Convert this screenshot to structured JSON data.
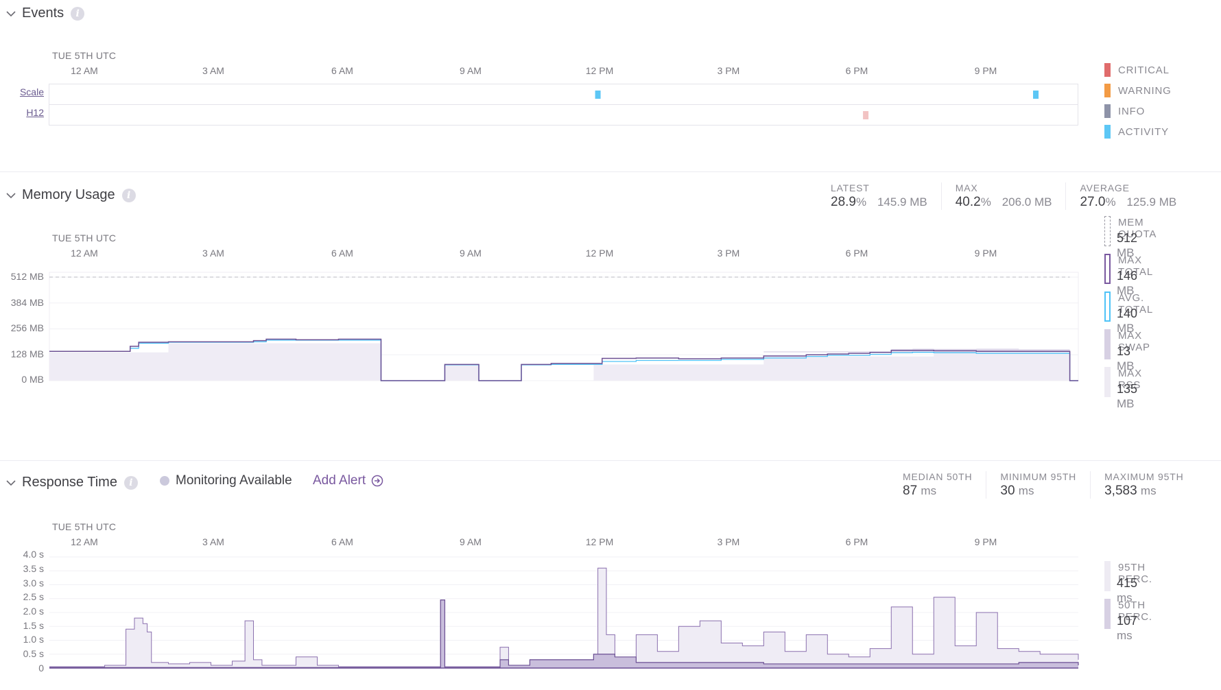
{
  "timezone_label": "TUE 5TH UTC",
  "time_ticks": [
    "12 AM",
    "3 AM",
    "6 AM",
    "9 AM",
    "12 PM",
    "3 PM",
    "6 PM",
    "9 PM"
  ],
  "events": {
    "title": "Events",
    "rows": [
      "Scale",
      "H12"
    ],
    "legend": [
      {
        "label": "CRITICAL",
        "color": "#e06c6c"
      },
      {
        "label": "WARNING",
        "color": "#f39b45"
      },
      {
        "label": "INFO",
        "color": "#8e93a8"
      },
      {
        "label": "ACTIVITY",
        "color": "#5dc7f5"
      }
    ],
    "marks": [
      {
        "row": "Scale",
        "time_h": 12.1,
        "kind": "ACTIVITY"
      },
      {
        "row": "Scale",
        "time_h": 22.4,
        "kind": "ACTIVITY"
      },
      {
        "row": "H12",
        "time_h": 18.4,
        "kind": "CRITICAL"
      }
    ]
  },
  "memory": {
    "title": "Memory Usage",
    "stats": [
      {
        "label": "LATEST",
        "pct": "28.9",
        "pct_unit": "%",
        "mb": "145.9",
        "mb_unit": "MB"
      },
      {
        "label": "MAX",
        "pct": "40.2",
        "pct_unit": "%",
        "mb": "206.0",
        "mb_unit": "MB"
      },
      {
        "label": "AVERAGE",
        "pct": "27.0",
        "pct_unit": "%",
        "mb": "125.9",
        "mb_unit": "MB"
      }
    ],
    "y_labels": [
      "512 MB",
      "384 MB",
      "256 MB",
      "128 MB",
      "0 MB"
    ],
    "legend": [
      {
        "label": "MEM QUOTA",
        "value": "512",
        "unit": "MB",
        "style": "dashed"
      },
      {
        "label": "MAX TOTAL",
        "value": "146",
        "unit": "MB",
        "style": "outline-purple"
      },
      {
        "label": "AVG. TOTAL",
        "value": "140",
        "unit": "MB",
        "style": "outline-blue"
      },
      {
        "label": "MAX SWAP",
        "value": "13",
        "unit": "MB",
        "style": "fill-mid"
      },
      {
        "label": "MAX RSS",
        "value": "135",
        "unit": "MB",
        "style": "fill-light"
      }
    ]
  },
  "response": {
    "title": "Response Time",
    "monitoring_label": "Monitoring Available",
    "add_alert_label": "Add Alert",
    "stats": [
      {
        "label": "MEDIAN 50TH",
        "value": "87",
        "unit": "ms"
      },
      {
        "label": "MINIMUM 95TH",
        "value": "30",
        "unit": "ms"
      },
      {
        "label": "MAXIMUM 95TH",
        "value": "3,583",
        "unit": "ms"
      }
    ],
    "y_labels": [
      "4.0 s",
      "3.5 s",
      "3.0 s",
      "2.5 s",
      "2.0 s",
      "1.5 s",
      "1.0 s",
      "0.5 s",
      "0"
    ],
    "legend": [
      {
        "label": "95TH PERC.",
        "value": "415",
        "unit": "ms",
        "style": "fill-light"
      },
      {
        "label": "50TH PERC.",
        "value": "107",
        "unit": "ms",
        "style": "fill-mid"
      }
    ]
  },
  "chart_data": [
    {
      "type": "area",
      "title": "Memory Usage",
      "x_unit": "hours (UTC)",
      "ylim": [
        0,
        512
      ],
      "series": [
        {
          "name": "MAX TOTAL",
          "x": [
            -0.8,
            0.9,
            1.1,
            1.3,
            2.0,
            4.0,
            4.3,
            5.0,
            6.0,
            7.0,
            7.0,
            8.5,
            8.5,
            9.3,
            9.3,
            9.8,
            10.3,
            11.0,
            12.0,
            12.2,
            13.0,
            14.0,
            15.0,
            16.0,
            17.0,
            17.5,
            18.0,
            18.5,
            19.0,
            19.5,
            20.0,
            21.0,
            22.0,
            23.2,
            23.2,
            23.4
          ],
          "y": [
            145,
            145,
            170,
            190,
            192,
            198,
            205,
            202,
            205,
            205,
            0,
            0,
            80,
            80,
            0,
            0,
            80,
            85,
            85,
            110,
            112,
            108,
            112,
            122,
            128,
            132,
            135,
            140,
            150,
            150,
            148,
            145,
            145,
            145,
            0,
            0
          ]
        },
        {
          "name": "AVG. TOTAL",
          "x": [
            -0.8,
            0.9,
            1.1,
            1.3,
            2.0,
            4.0,
            4.3,
            5.0,
            6.0,
            7.0,
            7.0,
            8.5,
            8.5,
            9.3,
            9.3,
            9.8,
            10.3,
            11.0,
            12.0,
            12.2,
            13.0,
            14.0,
            15.0,
            16.0,
            17.0,
            17.5,
            18.0,
            18.5,
            19.0,
            19.5,
            20.0,
            21.0,
            22.0,
            23.2,
            23.2,
            23.4
          ],
          "y": [
            145,
            145,
            160,
            185,
            190,
            192,
            200,
            200,
            200,
            200,
            0,
            0,
            78,
            78,
            0,
            0,
            78,
            80,
            80,
            95,
            100,
            100,
            105,
            112,
            120,
            125,
            125,
            130,
            138,
            140,
            138,
            135,
            135,
            135,
            0,
            0
          ]
        },
        {
          "name": "MAX SWAP",
          "x": [
            16.0,
            17.5,
            18.5,
            19.0,
            19.5,
            20.0,
            21.0,
            22.0,
            23.2
          ],
          "y": [
            0,
            0,
            0,
            10,
            13,
            12,
            13,
            10,
            8
          ]
        },
        {
          "name": "MAX RSS",
          "x": [
            -0.8,
            2.0,
            7.0,
            7.0,
            8.5,
            8.5,
            9.3,
            9.3,
            9.8,
            12.0,
            16.0,
            20.0,
            23.2
          ],
          "y": [
            140,
            185,
            200,
            0,
            0,
            75,
            75,
            0,
            0,
            80,
            120,
            135,
            135
          ]
        }
      ],
      "legend": [
        "MEM QUOTA",
        "MAX TOTAL",
        "AVG. TOTAL",
        "MAX SWAP",
        "MAX RSS"
      ],
      "quota_mb": 512
    },
    {
      "type": "area",
      "title": "Response Time",
      "x_unit": "hours (UTC)",
      "y_unit": "s",
      "ylim": [
        0,
        4.0
      ],
      "series": [
        {
          "name": "95TH PERC.",
          "x": [
            -0.8,
            0.5,
            1.0,
            1.2,
            1.4,
            1.5,
            1.6,
            2.0,
            2.5,
            3.0,
            3.5,
            3.8,
            4.0,
            4.2,
            4.4,
            5.0,
            5.5,
            6.0,
            7.0,
            8.0,
            8.4,
            8.5,
            9.0,
            9.5,
            9.8,
            10.0,
            10.5,
            11.0,
            11.5,
            12.0,
            12.1,
            12.3,
            12.5,
            13.0,
            13.5,
            14.0,
            14.5,
            15.0,
            15.5,
            16.0,
            16.5,
            17.0,
            17.5,
            18.0,
            18.5,
            19.0,
            19.5,
            20.0,
            20.5,
            21.0,
            21.5,
            22.0,
            22.5,
            23.0,
            23.4
          ],
          "y": [
            0.05,
            0.1,
            1.4,
            1.8,
            1.6,
            1.3,
            0.2,
            0.15,
            0.2,
            0.1,
            0.25,
            1.7,
            0.3,
            0.1,
            0.1,
            0.4,
            0.1,
            0.05,
            0.05,
            0.05,
            2.45,
            0.05,
            0.05,
            0.05,
            0.75,
            0.1,
            0.3,
            0.3,
            0.3,
            0.4,
            3.6,
            1.2,
            0.3,
            1.2,
            0.6,
            1.5,
            1.7,
            0.9,
            0.8,
            1.3,
            0.6,
            1.2,
            0.5,
            0.4,
            0.7,
            2.2,
            0.5,
            2.55,
            0.8,
            2.0,
            0.7,
            0.6,
            0.5,
            0.5,
            0.3
          ]
        },
        {
          "name": "50TH PERC.",
          "x": [
            -0.8,
            8.4,
            8.5,
            9.8,
            10.0,
            10.5,
            11.0,
            12.0,
            12.3,
            12.5,
            13.0,
            14.0,
            16.0,
            18.0,
            20.0,
            22.0,
            23.4
          ],
          "y": [
            0.02,
            2.45,
            0.02,
            0.3,
            0.1,
            0.3,
            0.3,
            0.5,
            0.5,
            0.4,
            0.2,
            0.2,
            0.15,
            0.15,
            0.15,
            0.2,
            0.1
          ]
        }
      ],
      "legend": [
        "95TH PERC.",
        "50TH PERC."
      ]
    }
  ]
}
